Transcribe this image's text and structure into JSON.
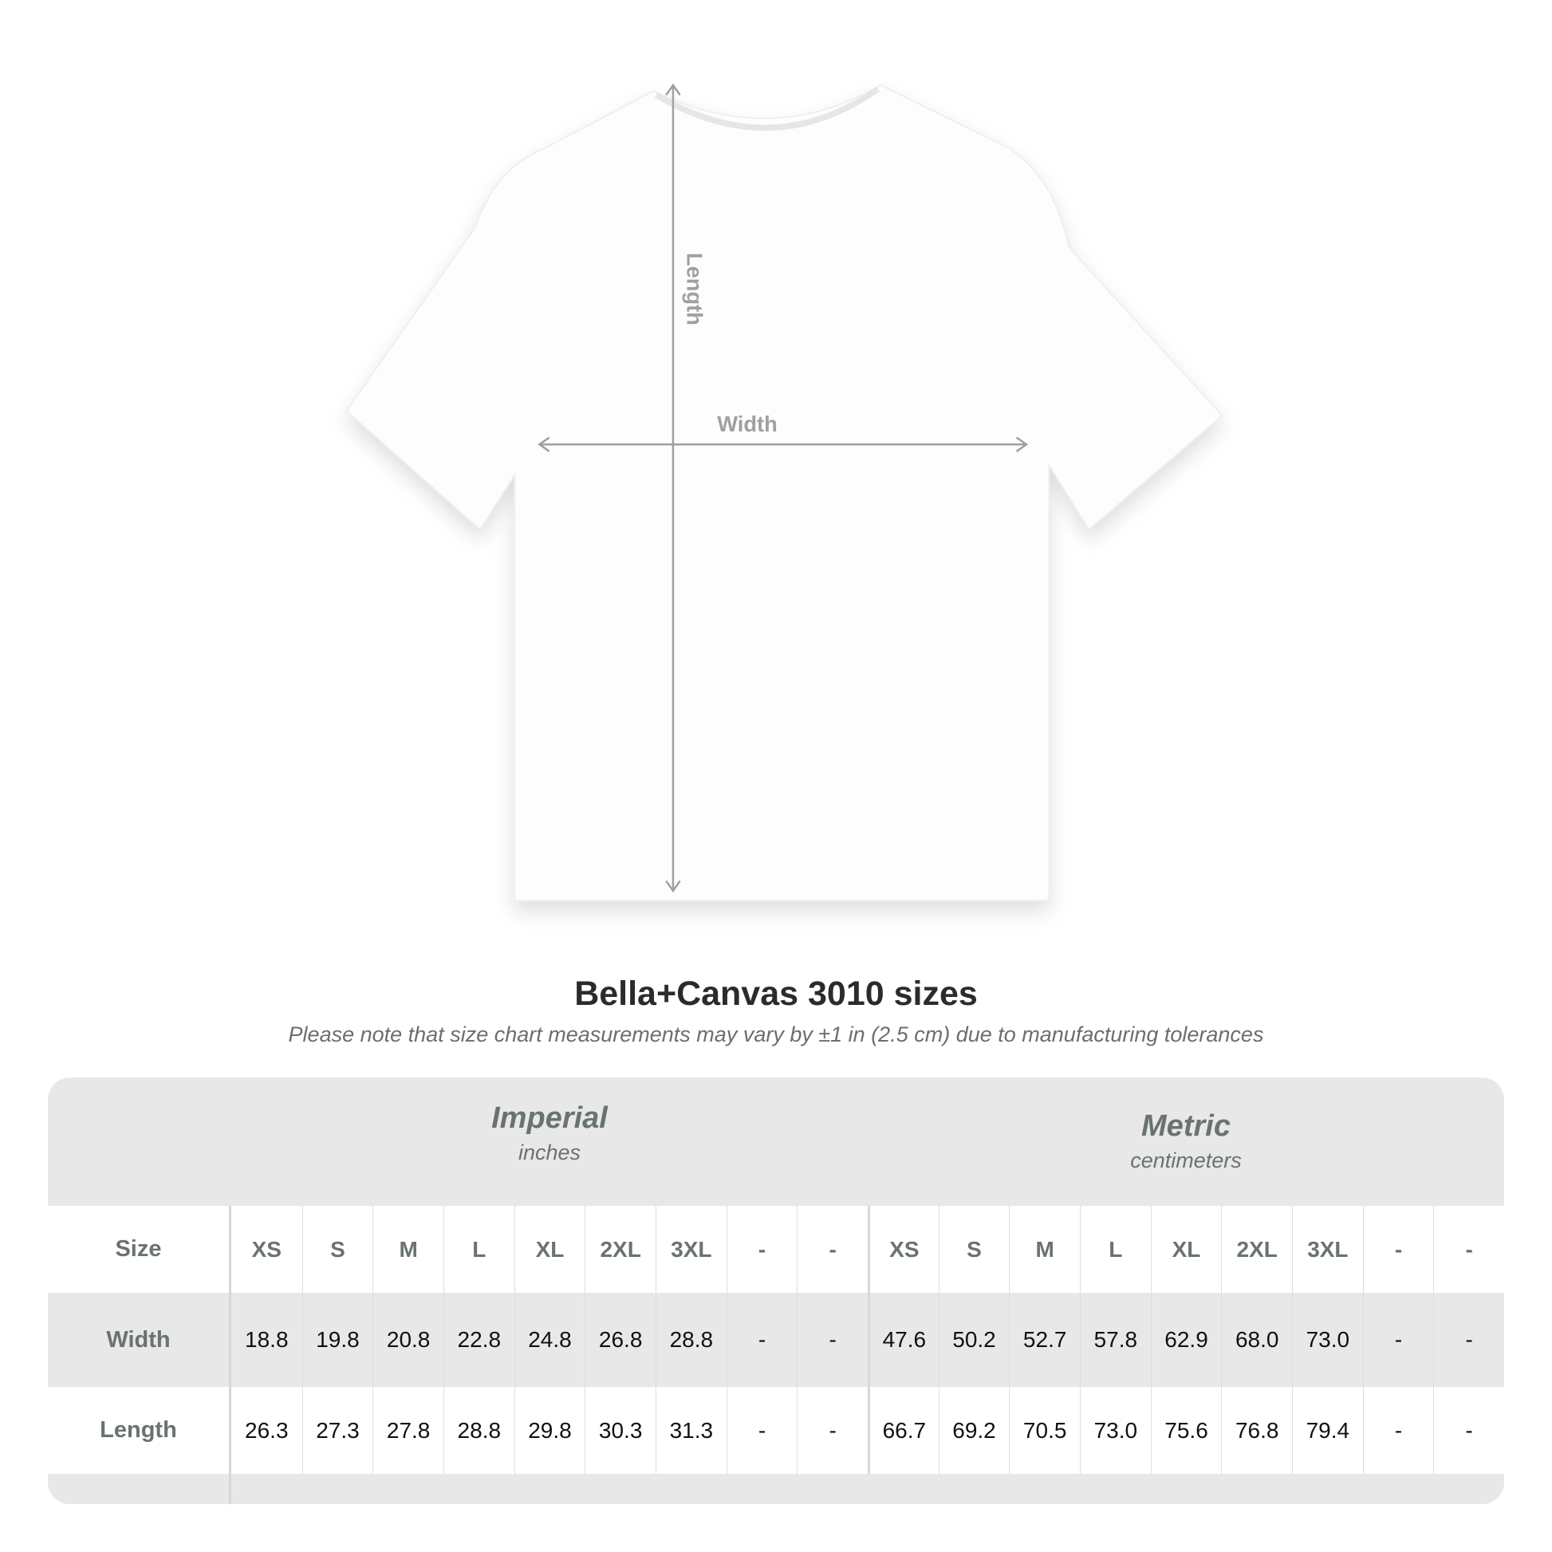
{
  "diagram": {
    "length_label": "Length",
    "width_label": "Width"
  },
  "title": "Bella+Canvas 3010 sizes",
  "subtitle": "Please note that size chart measurements may vary by ±1 in (2.5 cm) due to manufacturing tolerances",
  "table": {
    "imperial": {
      "title": "Imperial",
      "unit": "inches"
    },
    "metric": {
      "title": "Metric",
      "unit": "centimeters"
    },
    "rows": [
      {
        "label": "Size",
        "imperial": [
          "XS",
          "S",
          "M",
          "L",
          "XL",
          "2XL",
          "3XL",
          "-",
          "-"
        ],
        "metric": [
          "XS",
          "S",
          "M",
          "L",
          "XL",
          "2XL",
          "3XL",
          "-",
          "-"
        ]
      },
      {
        "label": "Width",
        "imperial": [
          "18.8",
          "19.8",
          "20.8",
          "22.8",
          "24.8",
          "26.8",
          "28.8",
          "-",
          "-"
        ],
        "metric": [
          "47.6",
          "50.2",
          "52.7",
          "57.8",
          "62.9",
          "68.0",
          "73.0",
          "-",
          "-"
        ]
      },
      {
        "label": "Length",
        "imperial": [
          "26.3",
          "27.3",
          "27.8",
          "28.8",
          "29.8",
          "30.3",
          "31.3",
          "-",
          "-"
        ],
        "metric": [
          "66.7",
          "69.2",
          "70.5",
          "73.0",
          "75.6",
          "76.8",
          "79.4",
          "-",
          "-"
        ]
      }
    ]
  },
  "colors": {
    "table_bg": "#e8e8e8",
    "label_text": "#6a7272",
    "arrow": "#a0a0a0"
  }
}
